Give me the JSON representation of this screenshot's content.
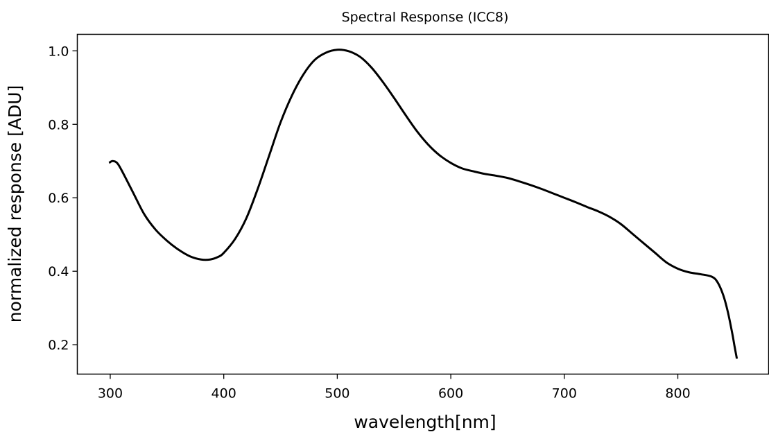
{
  "chart_data": {
    "type": "line",
    "title": "Spectral Response (ICC8)",
    "xlabel": "wavelength[nm]",
    "ylabel": "normalized response [ADU]",
    "xlim": [
      271,
      880
    ],
    "ylim": [
      0.12,
      1.045
    ],
    "xticks": [
      300,
      400,
      500,
      600,
      700,
      800
    ],
    "xtick_labels": [
      "300",
      "400",
      "500",
      "600",
      "700",
      "800"
    ],
    "yticks": [
      0.2,
      0.4,
      0.6,
      0.8,
      1.0
    ],
    "ytick_labels": [
      "0.2",
      "0.4",
      "0.6",
      "0.8",
      "1.0"
    ],
    "grid": false,
    "series": [
      {
        "color": "#000000",
        "x": [
          299,
          302,
          306,
          310,
          320,
          330,
          340,
          350,
          360,
          370,
          380,
          388,
          395,
          400,
          410,
          420,
          430,
          440,
          450,
          460,
          470,
          480,
          490,
          500,
          510,
          520,
          530,
          540,
          550,
          560,
          570,
          580,
          590,
          600,
          610,
          620,
          630,
          640,
          650,
          660,
          670,
          680,
          690,
          700,
          710,
          720,
          730,
          740,
          750,
          760,
          770,
          780,
          790,
          800,
          810,
          820,
          830,
          835,
          840,
          844,
          848,
          850,
          852
        ],
        "y": [
          0.695,
          0.7,
          0.695,
          0.675,
          0.615,
          0.555,
          0.513,
          0.483,
          0.459,
          0.441,
          0.432,
          0.432,
          0.439,
          0.45,
          0.488,
          0.545,
          0.625,
          0.715,
          0.805,
          0.878,
          0.935,
          0.975,
          0.995,
          1.003,
          0.999,
          0.984,
          0.955,
          0.916,
          0.872,
          0.826,
          0.782,
          0.745,
          0.716,
          0.695,
          0.68,
          0.672,
          0.665,
          0.66,
          0.654,
          0.645,
          0.635,
          0.624,
          0.612,
          0.6,
          0.588,
          0.575,
          0.563,
          0.548,
          0.528,
          0.502,
          0.476,
          0.45,
          0.424,
          0.407,
          0.397,
          0.392,
          0.385,
          0.37,
          0.335,
          0.29,
          0.23,
          0.195,
          0.162
        ]
      }
    ]
  }
}
